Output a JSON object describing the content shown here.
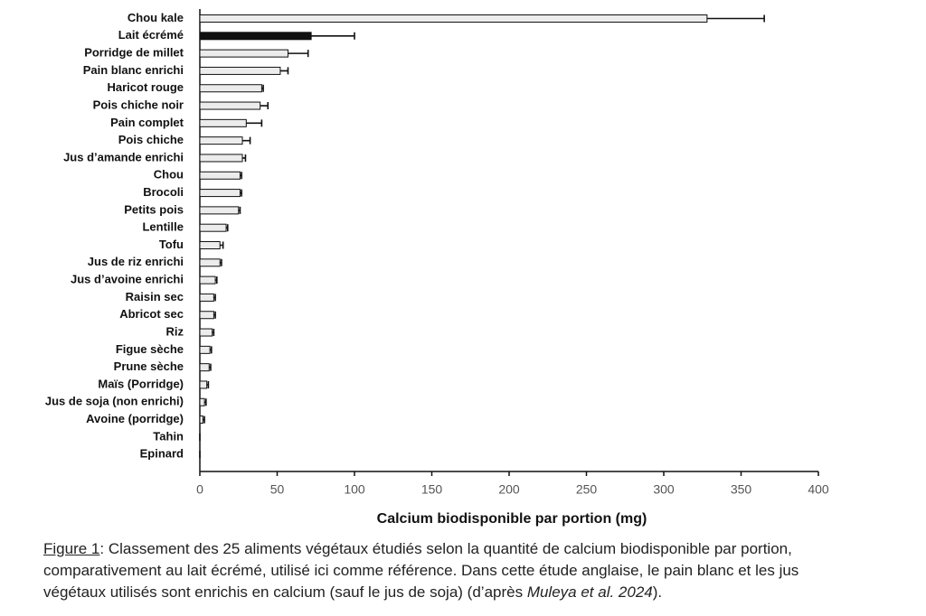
{
  "chart_data": {
    "type": "hbar",
    "x_label": "Calcium biodisponible par portion (mg)",
    "categories": [
      "Chou kale",
      "Lait écrémé",
      "Porridge de millet",
      "Pain blanc enrichi",
      "Haricot rouge",
      "Pois chiche noir",
      "Pain complet",
      "Pois chiche",
      "Jus d’amande enrichi",
      "Chou",
      "Brocoli",
      "Petits pois",
      "Lentille",
      "Tofu",
      "Jus de riz enrichi",
      "Jus d’avoine enrichi",
      "Raisin sec",
      "Abricot sec",
      "Riz",
      "Figue sèche",
      "Prune sèche",
      "Maïs (Porridge)",
      "Jus de soja (non enrichi)",
      "Avoine (porridge)",
      "Tahin",
      "Epinard"
    ],
    "values": [
      328,
      72,
      57,
      52,
      40,
      39,
      30,
      27.5,
      27.5,
      26,
      26,
      25,
      17,
      13,
      13,
      10,
      9,
      9,
      8,
      6.5,
      6,
      4.5,
      3,
      2,
      0,
      0
    ],
    "errors": [
      37,
      28,
      13,
      5,
      1,
      5,
      10,
      5,
      2,
      1,
      1,
      1,
      1,
      2,
      1,
      1,
      1,
      1,
      1,
      1,
      1,
      1,
      1,
      1,
      0,
      0
    ],
    "colors": [
      "#ececec",
      "#111111",
      "#ececec",
      "#ececec",
      "#ececec",
      "#ececec",
      "#ececec",
      "#ececec",
      "#ececec",
      "#ececec",
      "#ececec",
      "#ececec",
      "#ececec",
      "#ececec",
      "#ececec",
      "#ececec",
      "#ececec",
      "#ececec",
      "#ececec",
      "#ececec",
      "#ececec",
      "#ececec",
      "#ececec",
      "#ececec",
      "#ececec",
      "#ececec"
    ],
    "xlim": [
      0,
      400
    ],
    "xticks": [
      0,
      50,
      100,
      150,
      200,
      250,
      300,
      350,
      400
    ]
  },
  "caption": {
    "label": "Figure 1",
    "text": ": Classement des 25 aliments végétaux étudiés selon la quantité de calcium biodisponible par portion, comparativement au lait écrémé, utilisé ici comme référence. Dans cette étude anglaise, le pain blanc et les jus végétaux utilisés sont enrichis en calcium (sauf le jus de soja) (d’après ",
    "citation": "Muleya et al. 2024",
    "end": ")."
  }
}
